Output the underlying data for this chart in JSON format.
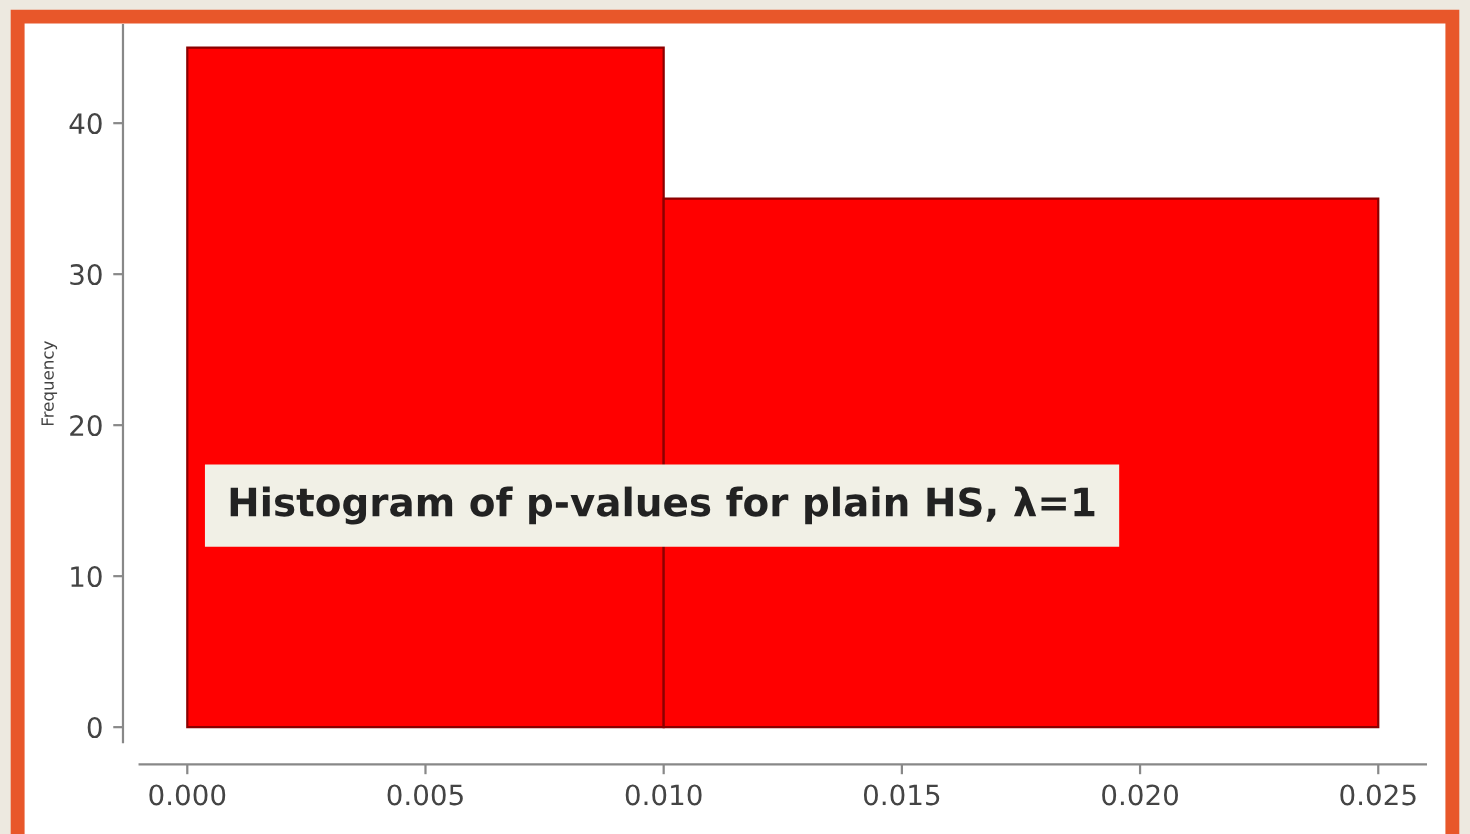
{
  "chart_data": {
    "type": "histogram",
    "ylabel": "Frequency",
    "annotations": [
      "Histogram of p-values for plain HS, λ=1"
    ],
    "bins": [
      0.0,
      0.01,
      0.025
    ],
    "values": [
      45,
      35
    ],
    "color": "#ff0000",
    "xlim": [
      -0.001,
      0.026
    ],
    "ylim": [
      -1,
      46.5
    ],
    "xticks": [
      {
        "value": 0.0,
        "label": "0.000"
      },
      {
        "value": 0.005,
        "label": "0.005"
      },
      {
        "value": 0.01,
        "label": "0.010"
      },
      {
        "value": 0.015,
        "label": "0.015"
      },
      {
        "value": 0.02,
        "label": "0.020"
      },
      {
        "value": 0.025,
        "label": "0.025"
      }
    ],
    "yticks": [
      0,
      10,
      20,
      30,
      40
    ],
    "grid": false
  }
}
